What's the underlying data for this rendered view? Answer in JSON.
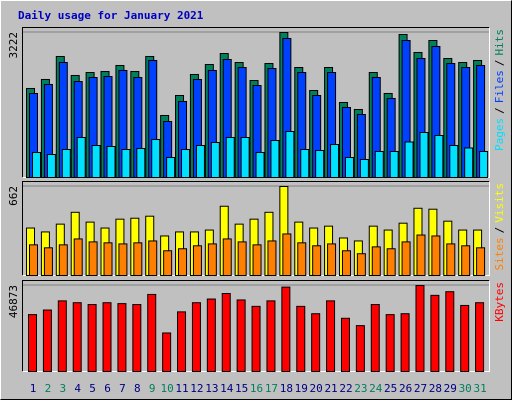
{
  "title": "Daily usage for January 2021",
  "legend_separator": "/",
  "category_color": "#000080",
  "weekend_color": "#00805c",
  "weekend_indices": [
    1,
    2,
    8,
    9,
    15,
    16,
    22,
    23,
    29,
    30
  ],
  "chart_data": [
    {
      "type": "bar",
      "categories": [
        "1",
        "2",
        "3",
        "4",
        "5",
        "6",
        "7",
        "8",
        "9",
        "10",
        "11",
        "12",
        "13",
        "14",
        "15",
        "16",
        "17",
        "18",
        "19",
        "20",
        "21",
        "22",
        "23",
        "24",
        "25",
        "26",
        "27",
        "28",
        "29",
        "30",
        "31"
      ],
      "ylim": [
        0,
        3222
      ],
      "yticks": [
        3222
      ],
      "series": [
        {
          "name": "Hits",
          "color": "#00805c",
          "values": [
            1978,
            2178,
            2689,
            2267,
            2333,
            2355,
            2489,
            2355,
            2689,
            1378,
            1822,
            2289,
            2511,
            2755,
            2555,
            2155,
            2533,
            3222,
            2444,
            1933,
            2444,
            1667,
            1511,
            2333,
            1867,
            3178,
            2778,
            3044,
            2644,
            2555,
            2600
          ]
        },
        {
          "name": "Files",
          "color": "#0040ff",
          "values": [
            1867,
            2067,
            2556,
            2133,
            2222,
            2244,
            2378,
            2222,
            2600,
            1244,
            1689,
            2178,
            2378,
            2622,
            2444,
            2044,
            2422,
            3089,
            2333,
            1822,
            2333,
            1556,
            1400,
            2222,
            1756,
            3044,
            2644,
            2911,
            2533,
            2444,
            2489
          ]
        },
        {
          "name": "Pages",
          "color": "#00e0ff",
          "values": [
            556,
            511,
            622,
            889,
            711,
            689,
            622,
            644,
            844,
            444,
            622,
            711,
            778,
            889,
            889,
            556,
            822,
            1022,
            622,
            600,
            733,
            444,
            400,
            578,
            578,
            789,
            1000,
            933,
            711,
            656,
            578
          ]
        }
      ]
    },
    {
      "type": "bar",
      "ylim": [
        0,
        662
      ],
      "yticks": [
        662
      ],
      "series": [
        {
          "name": "Visits",
          "color": "#ffff00",
          "values": [
            353,
            324,
            382,
            470,
            397,
            353,
            419,
            426,
            441,
            294,
            324,
            324,
            338,
            515,
            382,
            419,
            470,
            662,
            397,
            353,
            367,
            279,
            257,
            367,
            338,
            389,
            500,
            493,
            404,
            338,
            338
          ]
        },
        {
          "name": "Sites",
          "color": "#ff8000",
          "values": [
            228,
            206,
            228,
            272,
            250,
            243,
            235,
            243,
            257,
            184,
            199,
            221,
            235,
            272,
            250,
            228,
            257,
            309,
            243,
            221,
            235,
            184,
            162,
            213,
            199,
            250,
            301,
            294,
            235,
            221,
            206
          ]
        }
      ]
    },
    {
      "type": "bar",
      "ylim": [
        0,
        46873
      ],
      "yticks": [
        46873
      ],
      "series": [
        {
          "name": "KBytes",
          "color": "#ff0000",
          "values": [
            31000,
            33500,
            38500,
            37500,
            36500,
            37500,
            37000,
            36500,
            42000,
            21000,
            32500,
            37500,
            39500,
            42500,
            39000,
            35500,
            38500,
            46000,
            35500,
            31500,
            38500,
            29000,
            25000,
            36500,
            31000,
            31500,
            46873,
            41500,
            43500,
            36000,
            37500
          ]
        }
      ]
    }
  ]
}
